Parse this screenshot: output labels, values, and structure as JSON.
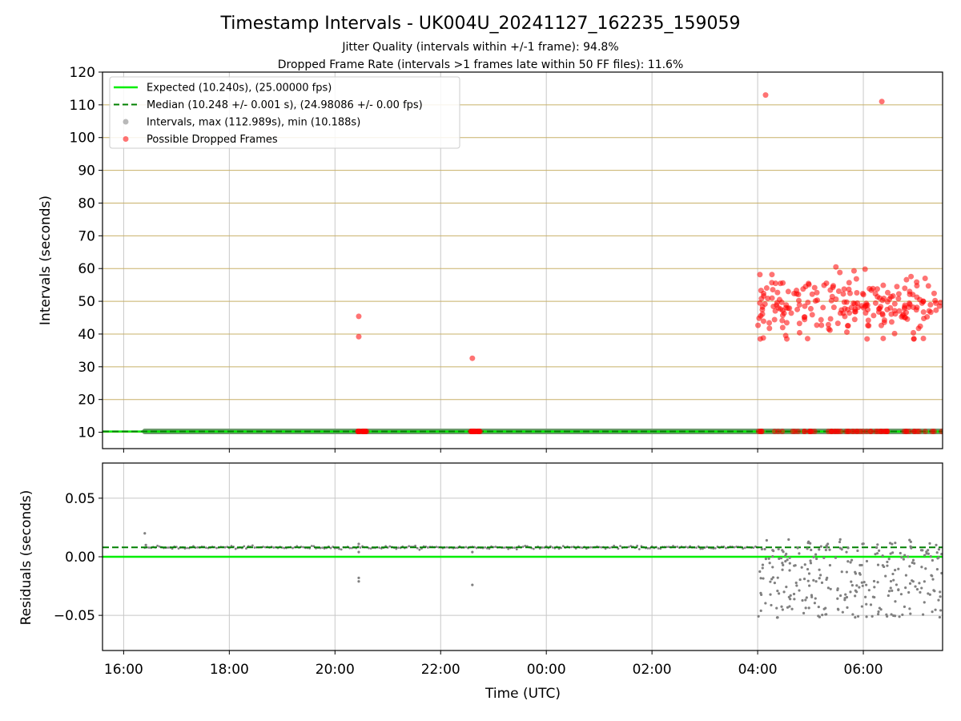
{
  "title": "Timestamp Intervals - UK004U_20241127_162235_159059",
  "subtitle_1": "Jitter Quality (intervals within +/-1 frame): 94.8%",
  "subtitle_2": "Dropped Frame Rate (intervals >1 frames late within 50 FF files): 11.6%",
  "colors": {
    "expected": "#00ee00",
    "median": "#008000",
    "intervals": "#808080",
    "dropped": "#ff0000",
    "hgrid": "#c8b068",
    "vgrid": "#c8c8c8"
  },
  "chart_data": [
    {
      "type": "scatter",
      "panel": "intervals",
      "ylabel": "Intervals (seconds)",
      "ylim": [
        5,
        120
      ],
      "yticks": [
        10,
        20,
        30,
        40,
        50,
        60,
        70,
        80,
        90,
        100,
        110,
        120
      ],
      "xlim_hours": [
        15.6,
        31.5
      ],
      "xtick_hours": [
        16,
        18,
        20,
        22,
        24,
        26,
        28,
        30
      ],
      "xtick_labels": [
        "16:00",
        "18:00",
        "20:00",
        "22:00",
        "00:00",
        "02:00",
        "04:00",
        "06:00"
      ],
      "grid": true,
      "legend_position": "top-left",
      "legend": [
        {
          "label": "Expected (10.240s), (25.00000 fps)",
          "style": "solid-line"
        },
        {
          "label": "Median (10.248 +/- 0.001 s), (24.98086 +/- 0.00 fps)",
          "style": "dashed-line"
        },
        {
          "label": "Intervals, max (112.989s), min (10.188s)",
          "style": "gray-marker"
        },
        {
          "label": "Possible Dropped Frames",
          "style": "red-marker"
        }
      ],
      "expected_interval": 10.24,
      "median_interval": 10.248,
      "interval_band_hours": [
        16.4,
        31.5
      ],
      "dropped_frames_highlighted": [
        {
          "x_hours": 20.45,
          "y": 45.4
        },
        {
          "x_hours": 20.45,
          "y": 39.2
        },
        {
          "x_hours": 22.6,
          "y": 32.6
        },
        {
          "x_hours": 28.15,
          "y": 113.0
        },
        {
          "x_hours": 30.35,
          "y": 111.0
        }
      ],
      "dropped_cluster": {
        "x_hours_range": [
          28.0,
          31.5
        ],
        "y_range": [
          38.5,
          61.5
        ],
        "count": 230,
        "y_mean": 48.5,
        "y_spread": 4.8
      },
      "dropped_near_expected": [
        {
          "x_hours_range": [
            20.4,
            20.6
          ],
          "count": 20
        },
        {
          "x_hours_range": [
            22.55,
            22.75
          ],
          "count": 20
        },
        {
          "x_hours_range": [
            28.0,
            31.5
          ],
          "count": 60
        }
      ]
    },
    {
      "type": "scatter",
      "panel": "residuals",
      "ylabel": "Residuals (seconds)",
      "xlabel": "Time (UTC)",
      "ylim": [
        -0.08,
        0.08
      ],
      "yticks": [
        0.05,
        0.0,
        -0.05
      ],
      "ytick_labels": [
        "0.05",
        "0.00",
        "−0.05"
      ],
      "grid": true,
      "expected_residual": 0.0,
      "median_residual": 0.008,
      "residual_band": {
        "x_hours_range": [
          16.4,
          28.0
        ],
        "y": 0.008
      },
      "residual_outliers": [
        {
          "x_hours": 16.4,
          "y": 0.02
        },
        {
          "x_hours": 16.42,
          "y": 0.01
        },
        {
          "x_hours": 20.45,
          "y": -0.018
        },
        {
          "x_hours": 20.45,
          "y": -0.021
        },
        {
          "x_hours": 20.45,
          "y": 0.011
        },
        {
          "x_hours": 20.45,
          "y": 0.004
        },
        {
          "x_hours": 22.6,
          "y": -0.024
        },
        {
          "x_hours": 22.6,
          "y": 0.004
        }
      ],
      "residual_cluster": {
        "x_hours_range": [
          28.0,
          31.5
        ],
        "y_range": [
          -0.052,
          0.015
        ],
        "count": 290
      }
    }
  ]
}
